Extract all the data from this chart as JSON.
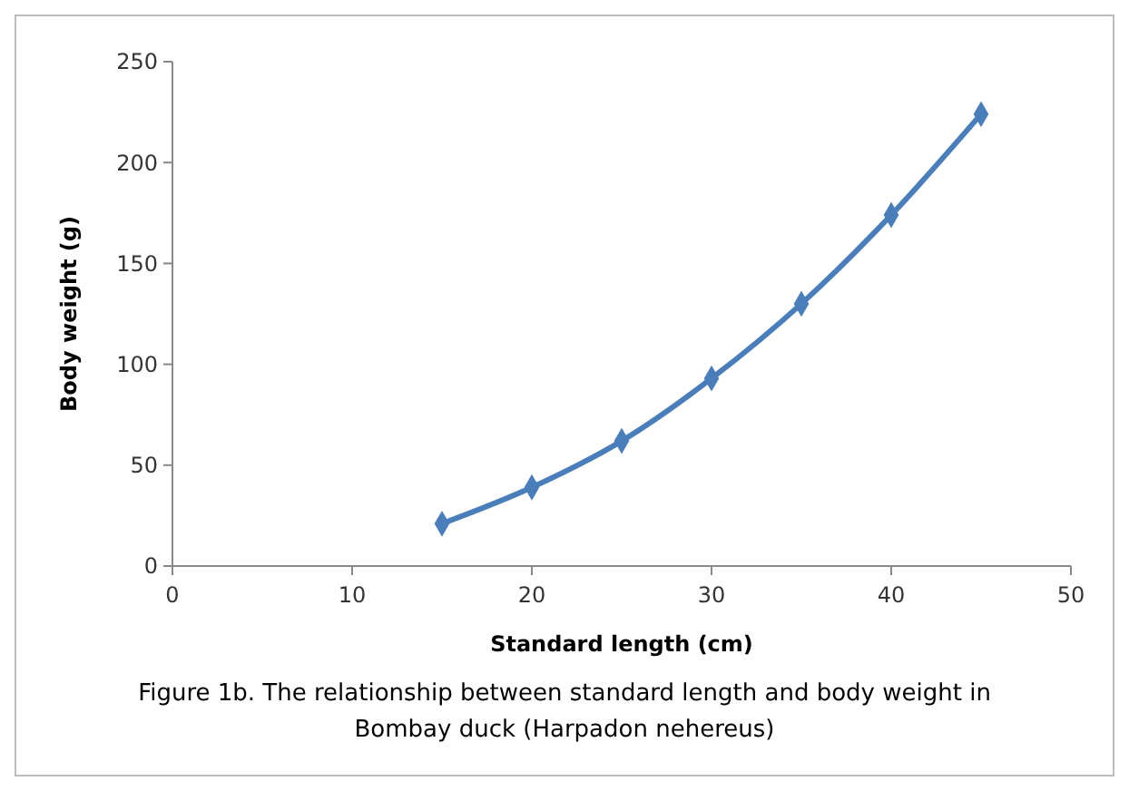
{
  "chart_data": {
    "type": "line",
    "xlabel": "Standard length (cm)",
    "ylabel": "Body weight (g)",
    "x": [
      15,
      20,
      25,
      30,
      35,
      40,
      45
    ],
    "series": [
      {
        "color": "#4a7ebb",
        "values": [
          21,
          39,
          62,
          93,
          130,
          174,
          224
        ]
      }
    ],
    "xlim": [
      0,
      50
    ],
    "xticks": [
      0,
      10,
      20,
      30,
      40,
      50
    ],
    "ylim": [
      0,
      250
    ],
    "yticks": [
      0,
      50,
      100,
      150,
      200,
      250
    ],
    "marker": "diamond",
    "line_style": "solid",
    "grid": false,
    "annotations": [
      "Figure 1b. The relationship between standard length and body weight in Bombay duck (Harpadon nehereus)"
    ]
  }
}
